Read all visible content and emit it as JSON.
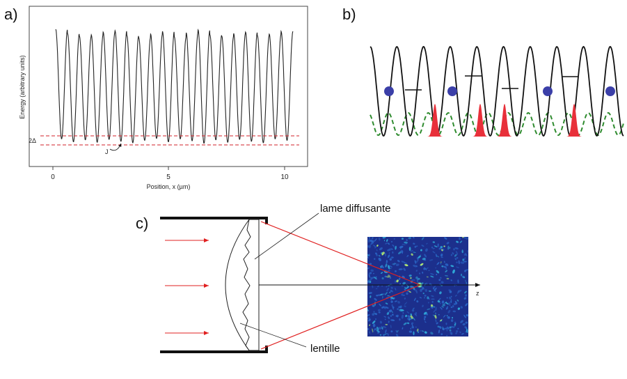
{
  "panel_a": {
    "label": "a)",
    "ylabel": "Energy (arbitrary units)",
    "xlabel": "Position,  x (µm)",
    "x_ticks": [
      "0",
      "5",
      "10"
    ],
    "delta_label": "2Δ",
    "j_label": "J"
  },
  "panel_b": {
    "label": "b)"
  },
  "panel_c": {
    "label": "c)",
    "diffuser_label": "lame diffusante",
    "lens_label": "lentille",
    "axis_label": "z"
  },
  "colors": {
    "potential": "#222222",
    "dashed_red": "#d0202a",
    "atom_blue": "#3b3fa8",
    "wavepacket_red": "#e8303a",
    "dashed_green": "#2e8b2e",
    "beam_red": "#e02020",
    "speckle_bg": "#1c2f8c"
  }
}
